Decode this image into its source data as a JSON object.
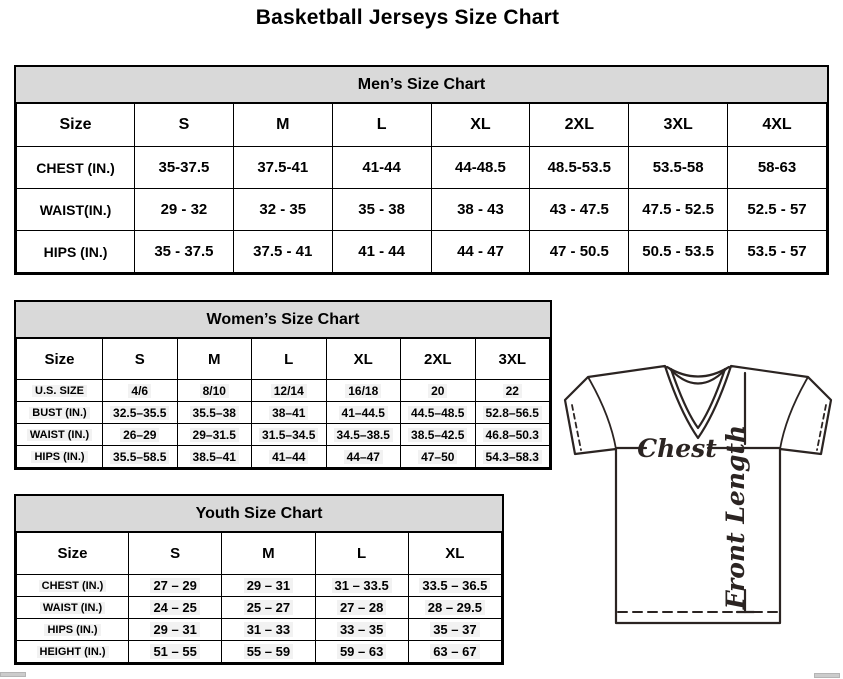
{
  "page_title": "Basketball Jerseys Size Chart",
  "colors": {
    "table_header_bg": "#d9d9d9",
    "table_border": "#000000",
    "sketch_line": "#2b2422"
  },
  "tables": [
    {
      "id": "mens",
      "title": "Men’s Size Chart",
      "columns": [
        "Size",
        "S",
        "M",
        "L",
        "XL",
        "2XL",
        "3XL",
        "4XL"
      ],
      "rows": [
        {
          "label": "CHEST (IN.)",
          "values": [
            "35-37.5",
            "37.5-41",
            "41-44",
            "44-48.5",
            "48.5-53.5",
            "53.5-58",
            "58-63"
          ]
        },
        {
          "label": "WAIST(IN.)",
          "values": [
            "29 - 32",
            "32 - 35",
            "35 - 38",
            "38 - 43",
            "43 - 47.5",
            "47.5 - 52.5",
            "52.5 - 57"
          ]
        },
        {
          "label": "HIPS (IN.)",
          "values": [
            "35 - 37.5",
            "37.5 - 41",
            "41 - 44",
            "44 - 47",
            "47 - 50.5",
            "50.5 - 53.5",
            "53.5 - 57"
          ]
        }
      ]
    },
    {
      "id": "womens",
      "title": "Women’s Size Chart",
      "columns": [
        "Size",
        "S",
        "M",
        "L",
        "XL",
        "2XL",
        "3XL"
      ],
      "rows": [
        {
          "label": "U.S. SIZE",
          "values": [
            "4/6",
            "8/10",
            "12/14",
            "16/18",
            "20",
            "22"
          ]
        },
        {
          "label": "BUST (IN.)",
          "values": [
            "32.5–35.5",
            "35.5–38",
            "38–41",
            "41–44.5",
            "44.5–48.5",
            "52.8–56.5"
          ]
        },
        {
          "label": "WAIST (IN.)",
          "values": [
            "26–29",
            "29–31.5",
            "31.5–34.5",
            "34.5–38.5",
            "38.5–42.5",
            "46.8–50.3"
          ]
        },
        {
          "label": "HIPS (IN.)",
          "values": [
            "35.5–58.5",
            "38.5–41",
            "41–44",
            "44–47",
            "47–50",
            "54.3–58.3"
          ]
        }
      ]
    },
    {
      "id": "youth",
      "title": "Youth Size Chart",
      "columns": [
        "Size",
        "S",
        "M",
        "L",
        "XL"
      ],
      "rows": [
        {
          "label": "CHEST (IN.)",
          "values": [
            "27 – 29",
            "29 – 31",
            "31 – 33.5",
            "33.5 – 36.5"
          ]
        },
        {
          "label": "WAIST (IN.)",
          "values": [
            "24 – 25",
            "25 – 27",
            "27 – 28",
            "28 – 29.5"
          ]
        },
        {
          "label": "HIPS (IN.)",
          "values": [
            "29 – 31",
            "31 – 33",
            "33 – 35",
            "35 – 37"
          ]
        },
        {
          "label": "HEIGHT (IN.)",
          "values": [
            "51 – 55",
            "55 – 59",
            "59 – 63",
            "63 – 67"
          ]
        }
      ]
    }
  ],
  "diagram": {
    "chest_label": "Chest",
    "front_length_label": "Front Length"
  }
}
